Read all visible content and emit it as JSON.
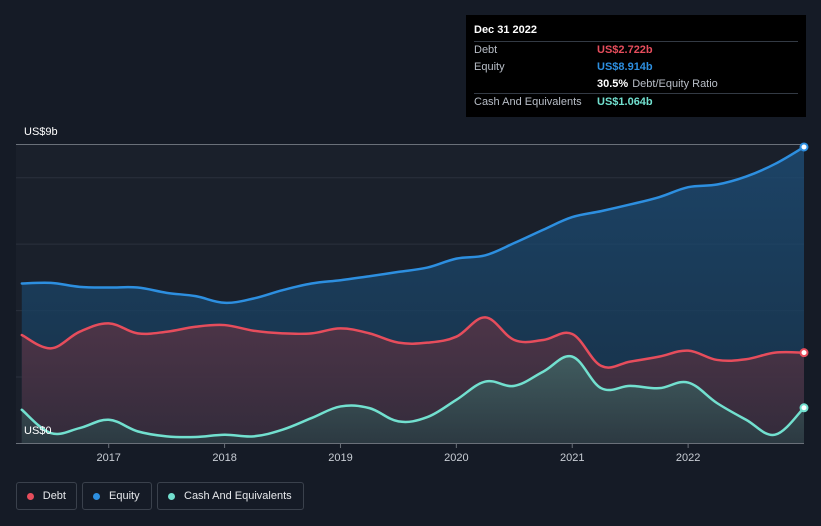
{
  "tooltip": {
    "date": "Dec 31 2022",
    "rows": [
      {
        "label": "Debt",
        "value": "US$2.722b",
        "color": "#e64d5c"
      },
      {
        "label": "Equity",
        "value": "US$8.914b",
        "color": "#2d8fe0"
      }
    ],
    "ratio_value": "30.5%",
    "ratio_label": "Debt/Equity Ratio",
    "cash": {
      "label": "Cash And Equivalents",
      "value": "US$1.064b",
      "color": "#72e0cf"
    }
  },
  "legend": [
    {
      "label": "Debt",
      "color": "#e64d5c"
    },
    {
      "label": "Equity",
      "color": "#2d8fe0"
    },
    {
      "label": "Cash And Equivalents",
      "color": "#72e0cf"
    }
  ],
  "chart_data": {
    "type": "area",
    "y_top_label": "US$9b",
    "y_bottom_label": "US$0",
    "ylim": [
      0,
      9
    ],
    "xlim": [
      2016.2,
      2023.0
    ],
    "x_tick_labels": [
      "2017",
      "2018",
      "2019",
      "2020",
      "2021",
      "2022"
    ],
    "x_ticks": [
      2017,
      2018,
      2019,
      2020,
      2021,
      2022
    ],
    "grid": true,
    "series": [
      {
        "name": "Equity",
        "color": "#2d8fe0",
        "x": [
          2016.25,
          2016.5,
          2016.75,
          2017.0,
          2017.25,
          2017.5,
          2017.75,
          2018.0,
          2018.25,
          2018.5,
          2018.75,
          2019.0,
          2019.25,
          2019.5,
          2019.75,
          2020.0,
          2020.25,
          2020.5,
          2020.75,
          2021.0,
          2021.25,
          2021.5,
          2021.75,
          2022.0,
          2022.25,
          2022.5,
          2022.75,
          2023.0
        ],
        "values": [
          4.8,
          4.82,
          4.7,
          4.68,
          4.68,
          4.52,
          4.42,
          4.22,
          4.35,
          4.6,
          4.8,
          4.9,
          5.02,
          5.15,
          5.28,
          5.55,
          5.65,
          6.02,
          6.42,
          6.8,
          6.98,
          7.18,
          7.4,
          7.7,
          7.78,
          8.02,
          8.4,
          8.91
        ]
      },
      {
        "name": "Debt",
        "color": "#e64d5c",
        "x": [
          2016.25,
          2016.5,
          2016.75,
          2017.0,
          2017.25,
          2017.5,
          2017.75,
          2018.0,
          2018.25,
          2018.5,
          2018.75,
          2019.0,
          2019.25,
          2019.5,
          2019.75,
          2020.0,
          2020.25,
          2020.5,
          2020.75,
          2021.0,
          2021.25,
          2021.5,
          2021.75,
          2022.0,
          2022.25,
          2022.5,
          2022.75,
          2023.0
        ],
        "values": [
          3.25,
          2.85,
          3.35,
          3.6,
          3.3,
          3.35,
          3.5,
          3.55,
          3.38,
          3.3,
          3.3,
          3.45,
          3.3,
          3.02,
          3.02,
          3.2,
          3.78,
          3.1,
          3.1,
          3.28,
          2.32,
          2.45,
          2.6,
          2.78,
          2.5,
          2.52,
          2.72,
          2.72
        ]
      },
      {
        "name": "Cash And Equivalents",
        "color": "#72e0cf",
        "x": [
          2016.25,
          2016.5,
          2016.75,
          2017.0,
          2017.25,
          2017.5,
          2017.75,
          2018.0,
          2018.25,
          2018.5,
          2018.75,
          2019.0,
          2019.25,
          2019.5,
          2019.75,
          2020.0,
          2020.25,
          2020.5,
          2020.75,
          2021.0,
          2021.25,
          2021.5,
          2021.75,
          2022.0,
          2022.25,
          2022.5,
          2022.75,
          2023.0
        ],
        "values": [
          1.0,
          0.3,
          0.45,
          0.7,
          0.35,
          0.2,
          0.18,
          0.25,
          0.2,
          0.4,
          0.75,
          1.1,
          1.05,
          0.65,
          0.78,
          1.3,
          1.85,
          1.72,
          2.15,
          2.6,
          1.65,
          1.72,
          1.65,
          1.82,
          1.2,
          0.7,
          0.25,
          1.06
        ]
      }
    ]
  }
}
